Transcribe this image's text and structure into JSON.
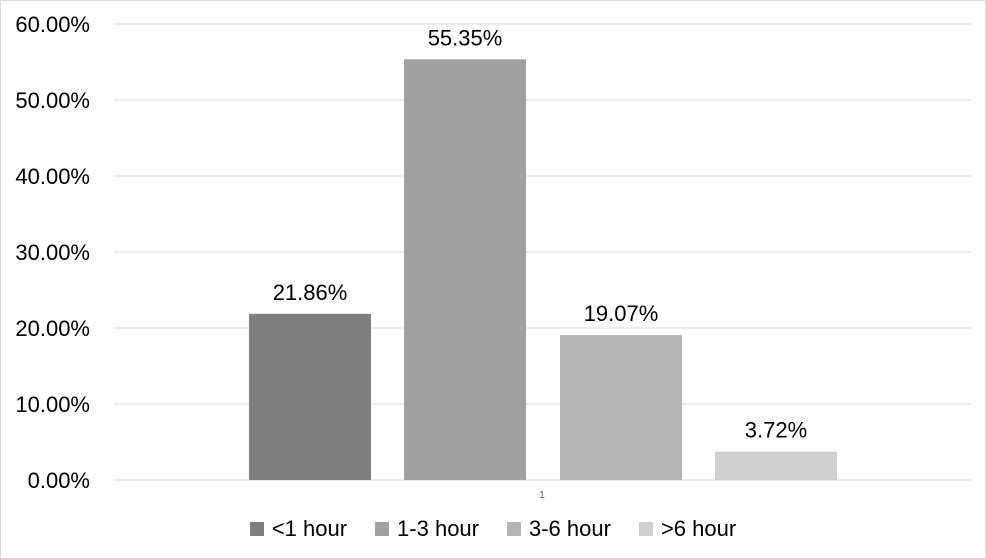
{
  "chart_data": {
    "type": "bar",
    "categories": [
      "1"
    ],
    "series": [
      {
        "name": "<1 hour",
        "values": [
          21.86
        ],
        "label": "21.86%",
        "color": "#7f7f7f"
      },
      {
        "name": "1-3 hour",
        "values": [
          55.35
        ],
        "label": "55.35%",
        "color": "#a0a0a0"
      },
      {
        "name": "3-6 hour",
        "values": [
          19.07
        ],
        "label": "19.07%",
        "color": "#b4b4b4"
      },
      {
        "name": ">6 hour",
        "values": [
          3.72
        ],
        "label": "3.72%",
        "color": "#d0d0d0"
      }
    ],
    "y_ticks": [
      "0.00%",
      "10.00%",
      "20.00%",
      "30.00%",
      "40.00%",
      "50.00%",
      "60.00%"
    ],
    "ylim": [
      0,
      60
    ],
    "grid": true,
    "legend_position": "bottom"
  }
}
